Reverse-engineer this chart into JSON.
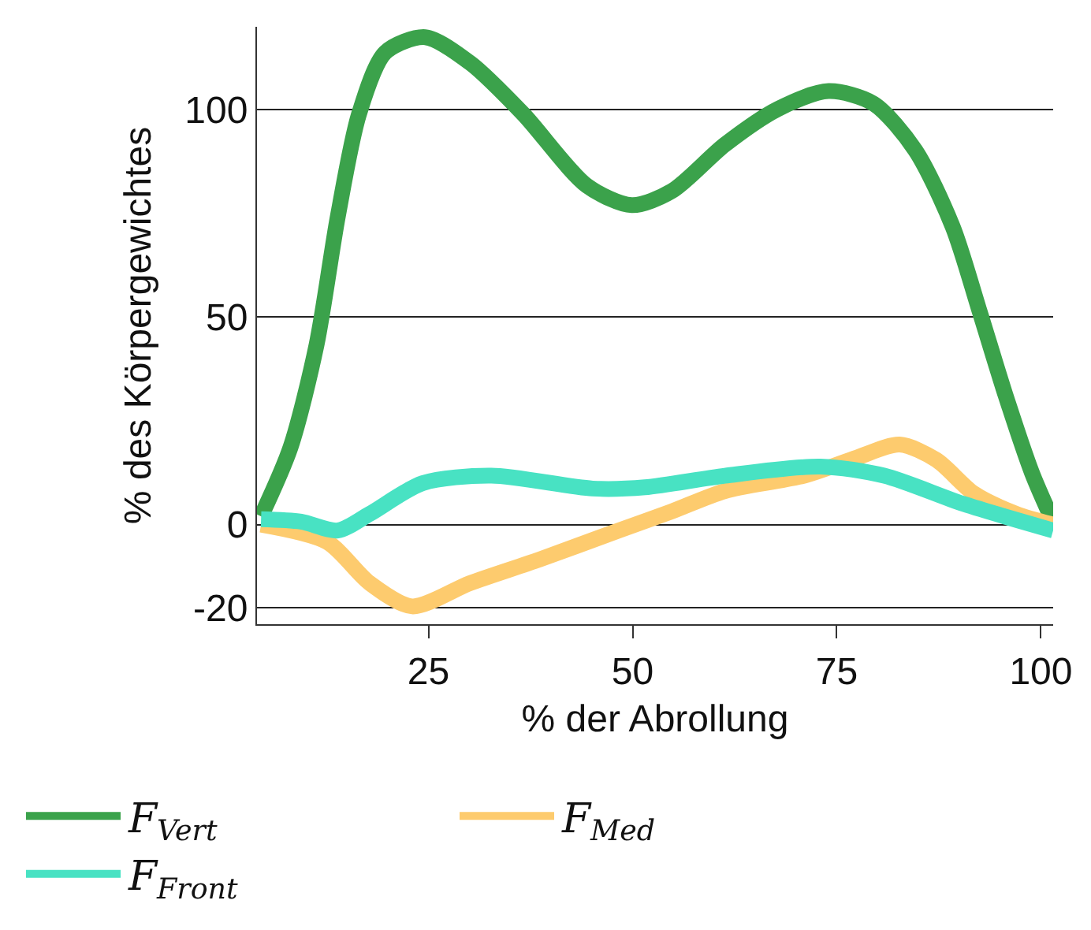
{
  "chart_data": {
    "type": "line",
    "xlabel": "% der Abrollung",
    "ylabel": "% des Körpergewichtes",
    "xlim": [
      4,
      101.5
    ],
    "ylim": [
      -24,
      120
    ],
    "xticks": [
      25,
      50,
      75,
      100
    ],
    "yticks": [
      -20,
      0,
      50,
      100
    ],
    "grid": "y",
    "legend": "bottom",
    "marker": "none",
    "line_style": "solid",
    "series": [
      {
        "name": "F$_{Vert}$",
        "color": "#3ba24b",
        "x": [
          4.5,
          8.1,
          11.3,
          13.9,
          16.5,
          19.7,
          24.6,
          30.1,
          36.6,
          44.4,
          49.9,
          54.8,
          61.3,
          67.8,
          74.0,
          79.5,
          84.6,
          89.2,
          92.4,
          95.7,
          98.9,
          101.5
        ],
        "values": [
          2.0,
          18.6,
          43.4,
          74.3,
          99.0,
          113.8,
          117.5,
          111.3,
          99.0,
          81.7,
          77.0,
          80.4,
          91.6,
          100.2,
          104.5,
          101.5,
          90.3,
          71.8,
          52.0,
          31.0,
          12.5,
          0.7
        ]
      },
      {
        "name": "F$_{Med}$",
        "color": "#fdcb6e",
        "x": [
          4.5,
          12.6,
          17.8,
          23.0,
          30.1,
          38.6,
          48.3,
          54.8,
          61.3,
          71.0,
          77.5,
          82.7,
          87.2,
          91.8,
          97.0,
          101.5
        ],
        "values": [
          0,
          -4.2,
          -14.1,
          -19.7,
          -14.1,
          -8.4,
          -1.4,
          3.2,
          8.1,
          11.8,
          16.2,
          19.3,
          15.6,
          7.5,
          2.6,
          0
        ]
      },
      {
        "name": "F$_{Front}$",
        "color": "#48e2c3",
        "x": [
          4.5,
          9.4,
          13.9,
          17.8,
          24.3,
          32.7,
          45.1,
          51.5,
          61.3,
          73.0,
          80.8,
          90.5,
          101.5
        ],
        "values": [
          1.3,
          0.7,
          -1.4,
          2.6,
          10.0,
          11.8,
          8.7,
          9.0,
          11.8,
          14.0,
          11.8,
          5.0,
          -1.4
        ]
      }
    ]
  }
}
